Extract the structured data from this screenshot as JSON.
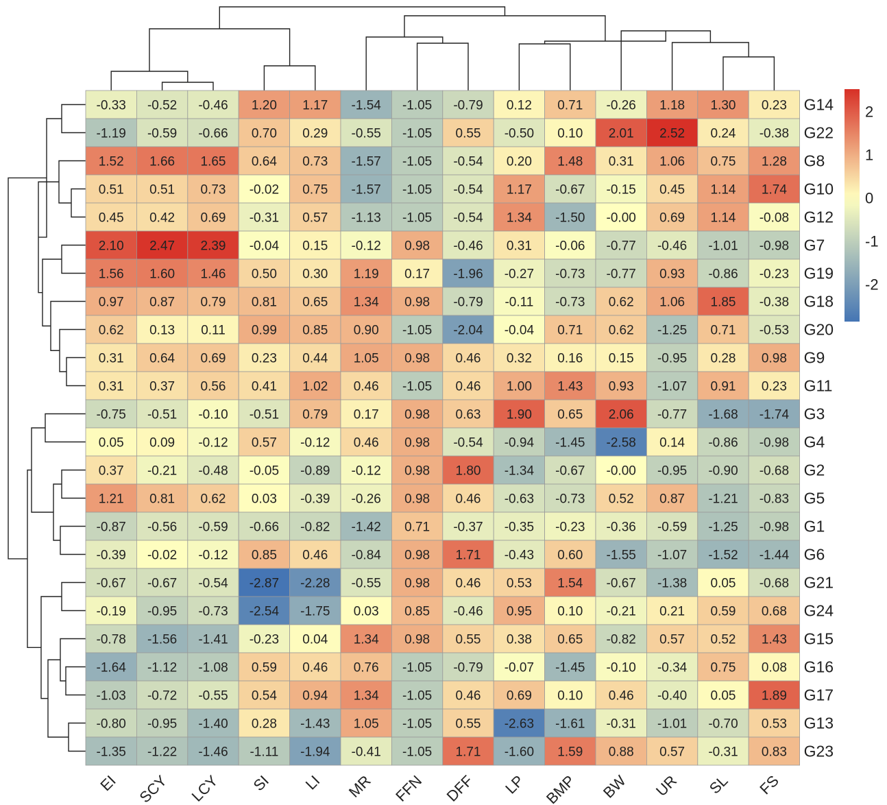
{
  "chart_data": {
    "type": "heatmap",
    "columns": [
      "EI",
      "SCY",
      "LCY",
      "SI",
      "LI",
      "MR",
      "FFN",
      "DFF",
      "LP",
      "BMP",
      "BW",
      "UR",
      "SL",
      "FS"
    ],
    "rows": [
      "G14",
      "G22",
      "G8",
      "G10",
      "G12",
      "G7",
      "G19",
      "G18",
      "G20",
      "G9",
      "G11",
      "G3",
      "G4",
      "G2",
      "G5",
      "G1",
      "G6",
      "G21",
      "G24",
      "G15",
      "G16",
      "G17",
      "G13",
      "G23"
    ],
    "values": [
      [
        "-0.33",
        "-0.52",
        "-0.46",
        "1.20",
        "1.17",
        "-1.54",
        "-1.05",
        "-0.79",
        "0.12",
        "0.71",
        "-0.26",
        "1.18",
        "1.30",
        "0.23"
      ],
      [
        "-1.19",
        "-0.59",
        "-0.66",
        "0.70",
        "0.29",
        "-0.55",
        "-1.05",
        "0.55",
        "-0.50",
        "0.10",
        "2.01",
        "2.52",
        "0.24",
        "-0.38"
      ],
      [
        "1.52",
        "1.66",
        "1.65",
        "0.64",
        "0.73",
        "-1.57",
        "-1.05",
        "-0.54",
        "0.20",
        "1.48",
        "0.31",
        "1.06",
        "0.75",
        "1.28"
      ],
      [
        "0.51",
        "0.51",
        "0.73",
        "-0.02",
        "0.75",
        "-1.57",
        "-1.05",
        "-0.54",
        "1.17",
        "-0.67",
        "-0.15",
        "0.45",
        "1.14",
        "1.74"
      ],
      [
        "0.45",
        "0.42",
        "0.69",
        "-0.31",
        "0.57",
        "-1.13",
        "-1.05",
        "-0.54",
        "1.34",
        "-1.50",
        "-0.00",
        "0.69",
        "1.14",
        "-0.08"
      ],
      [
        "2.10",
        "2.47",
        "2.39",
        "-0.04",
        "0.15",
        "-0.12",
        "0.98",
        "-0.46",
        "0.31",
        "-0.06",
        "-0.77",
        "-0.46",
        "-1.01",
        "-0.98"
      ],
      [
        "1.56",
        "1.60",
        "1.46",
        "0.50",
        "0.30",
        "1.19",
        "0.17",
        "-1.96",
        "-0.27",
        "-0.73",
        "-0.77",
        "0.93",
        "-0.86",
        "-0.23"
      ],
      [
        "0.97",
        "0.87",
        "0.79",
        "0.81",
        "0.65",
        "1.34",
        "0.98",
        "-0.79",
        "-0.11",
        "-0.73",
        "0.62",
        "1.06",
        "1.85",
        "-0.38"
      ],
      [
        "0.62",
        "0.13",
        "0.11",
        "0.99",
        "0.85",
        "0.90",
        "-1.05",
        "-2.04",
        "-0.04",
        "0.71",
        "0.62",
        "-1.25",
        "0.71",
        "-0.53"
      ],
      [
        "0.31",
        "0.64",
        "0.69",
        "0.23",
        "0.44",
        "1.05",
        "0.98",
        "0.46",
        "0.32",
        "0.16",
        "0.15",
        "-0.95",
        "0.28",
        "0.98"
      ],
      [
        "0.31",
        "0.37",
        "0.56",
        "0.41",
        "1.02",
        "0.46",
        "-1.05",
        "0.46",
        "1.00",
        "1.43",
        "0.93",
        "-1.07",
        "0.91",
        "0.23"
      ],
      [
        "-0.75",
        "-0.51",
        "-0.10",
        "-0.51",
        "0.79",
        "0.17",
        "0.98",
        "0.63",
        "1.90",
        "0.65",
        "2.06",
        "-0.77",
        "-1.68",
        "-1.74"
      ],
      [
        "0.05",
        "0.09",
        "-0.12",
        "0.57",
        "-0.12",
        "0.46",
        "0.98",
        "-0.54",
        "-0.94",
        "-1.45",
        "-2.58",
        "0.14",
        "-0.86",
        "-0.98"
      ],
      [
        "0.37",
        "-0.21",
        "-0.48",
        "-0.05",
        "-0.89",
        "-0.12",
        "0.98",
        "1.80",
        "-1.34",
        "-0.67",
        "-0.00",
        "-0.95",
        "-0.90",
        "-0.68"
      ],
      [
        "1.21",
        "0.81",
        "0.62",
        "0.03",
        "-0.39",
        "-0.26",
        "0.98",
        "0.46",
        "-0.63",
        "-0.73",
        "0.52",
        "0.87",
        "-1.21",
        "-0.83"
      ],
      [
        "-0.87",
        "-0.56",
        "-0.59",
        "-0.66",
        "-0.82",
        "-1.42",
        "0.71",
        "-0.37",
        "-0.35",
        "-0.23",
        "-0.36",
        "-0.59",
        "-1.25",
        "-0.98"
      ],
      [
        "-0.39",
        "-0.02",
        "-0.12",
        "0.85",
        "0.46",
        "-0.84",
        "0.98",
        "1.71",
        "-0.43",
        "0.60",
        "-1.55",
        "-1.07",
        "-1.52",
        "-1.44"
      ],
      [
        "-0.67",
        "-0.67",
        "-0.54",
        "-2.87",
        "-2.28",
        "-0.55",
        "0.98",
        "0.46",
        "0.53",
        "1.54",
        "-0.67",
        "-1.38",
        "0.05",
        "-0.68"
      ],
      [
        "-0.19",
        "-0.95",
        "-0.73",
        "-2.54",
        "-1.75",
        "0.03",
        "0.85",
        "-0.46",
        "0.95",
        "0.10",
        "-0.21",
        "0.21",
        "0.59",
        "0.68"
      ],
      [
        "-0.78",
        "-1.56",
        "-1.41",
        "-0.23",
        "0.04",
        "1.34",
        "0.98",
        "0.55",
        "0.38",
        "0.65",
        "-0.82",
        "0.57",
        "0.52",
        "1.43"
      ],
      [
        "-1.64",
        "-1.12",
        "-1.08",
        "0.59",
        "0.46",
        "0.76",
        "-1.05",
        "-0.79",
        "-0.07",
        "-1.45",
        "-0.10",
        "-0.34",
        "0.75",
        "0.08"
      ],
      [
        "-1.03",
        "-0.72",
        "-0.55",
        "0.54",
        "0.94",
        "1.34",
        "-1.05",
        "0.46",
        "0.69",
        "0.10",
        "0.46",
        "-0.40",
        "0.05",
        "1.89"
      ],
      [
        "-0.80",
        "-0.95",
        "-1.40",
        "0.28",
        "-1.43",
        "1.05",
        "-1.05",
        "0.55",
        "-2.63",
        "-1.61",
        "-0.31",
        "-1.01",
        "-0.70",
        "0.53"
      ],
      [
        "-1.35",
        "-1.22",
        "-1.46",
        "-1.11",
        "-1.94",
        "-0.41",
        "-1.05",
        "1.71",
        "-1.60",
        "1.59",
        "0.88",
        "0.57",
        "-0.31",
        "0.83"
      ]
    ],
    "color_scale": {
      "min_color": "#4575b4",
      "mid_color": "#ffffbf",
      "max_color": "#d73027",
      "range": [
        -2.87,
        2.52
      ]
    },
    "legend": {
      "placement": "right",
      "ticks": [
        "2",
        "1",
        "0",
        "-1",
        "-2"
      ]
    },
    "dendrograms": [
      "top",
      "left"
    ]
  }
}
